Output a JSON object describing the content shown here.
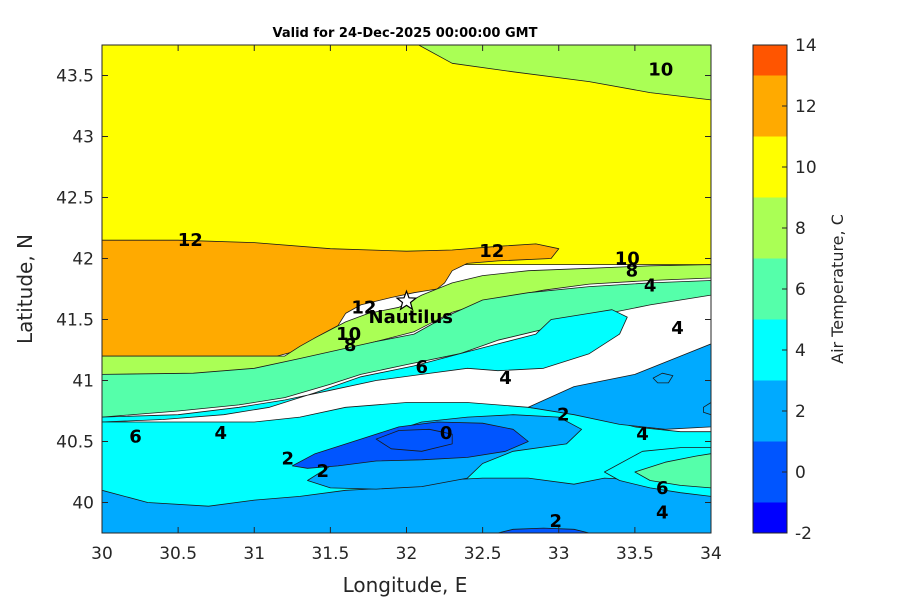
{
  "chart_data": {
    "type": "contour",
    "title": "Valid for 24-Dec-2025 00:00:00 GMT",
    "xlabel": "Longitude, E",
    "ylabel": "Latitude, N",
    "xlim": [
      30,
      34
    ],
    "ylim": [
      39.75,
      43.75
    ],
    "xticks": [
      "30",
      "30.5",
      "31",
      "31.5",
      "32",
      "32.5",
      "33",
      "33.5",
      "34"
    ],
    "yticks": [
      "40",
      "40.5",
      "41",
      "41.5",
      "42",
      "42.5",
      "43",
      "43.5"
    ],
    "colorbar": {
      "label": "Air Temperature, C",
      "ticks": [
        "-2",
        "0",
        "2",
        "4",
        "6",
        "8",
        "10",
        "12",
        "14"
      ],
      "levels": [
        {
          "from": -2,
          "to": -1,
          "color": "#0000ff"
        },
        {
          "from": -1,
          "to": 1,
          "color": "#0055ff"
        },
        {
          "from": 1,
          "to": 3,
          "color": "#00aaff"
        },
        {
          "from": 3,
          "to": 5,
          "color": "#00ffff"
        },
        {
          "from": 5,
          "to": 7,
          "color": "#55ffaa"
        },
        {
          "from": 7,
          "to": 9,
          "color": "#aaff55"
        },
        {
          "from": 9,
          "to": 11,
          "color": "#ffff00"
        },
        {
          "from": 11,
          "to": 13,
          "color": "#ffaa00"
        },
        {
          "from": 13,
          "to": 14,
          "color": "#ff5500"
        }
      ]
    },
    "marker": {
      "name": "Nautilus",
      "lon": 32.0,
      "lat": 41.65,
      "symbol": "star"
    },
    "contour_labels": [
      {
        "text": "10",
        "lon": 33.67,
        "lat": 43.55
      },
      {
        "text": "12",
        "lon": 30.58,
        "lat": 42.15
      },
      {
        "text": "12",
        "lon": 32.56,
        "lat": 42.06
      },
      {
        "text": "10",
        "lon": 33.45,
        "lat": 42.0
      },
      {
        "text": "8",
        "lon": 33.48,
        "lat": 41.9
      },
      {
        "text": "4",
        "lon": 33.6,
        "lat": 41.78
      },
      {
        "text": "4",
        "lon": 33.78,
        "lat": 41.43
      },
      {
        "text": "12",
        "lon": 31.72,
        "lat": 41.6
      },
      {
        "text": "10",
        "lon": 31.62,
        "lat": 41.38
      },
      {
        "text": "8",
        "lon": 31.63,
        "lat": 41.29
      },
      {
        "text": "6",
        "lon": 32.1,
        "lat": 41.11
      },
      {
        "text": "4",
        "lon": 32.65,
        "lat": 41.02
      },
      {
        "text": "2",
        "lon": 33.03,
        "lat": 40.72
      },
      {
        "text": "0",
        "lon": 32.26,
        "lat": 40.57
      },
      {
        "text": "4",
        "lon": 33.55,
        "lat": 40.56
      },
      {
        "text": "6",
        "lon": 30.22,
        "lat": 40.54
      },
      {
        "text": "4",
        "lon": 30.78,
        "lat": 40.57
      },
      {
        "text": "2",
        "lon": 31.22,
        "lat": 40.36
      },
      {
        "text": "2",
        "lon": 31.45,
        "lat": 40.26
      },
      {
        "text": "6",
        "lon": 33.68,
        "lat": 40.12
      },
      {
        "text": "4",
        "lon": 33.68,
        "lat": 39.92
      },
      {
        "text": "2",
        "lon": 32.98,
        "lat": 39.85
      }
    ],
    "regions": [
      {
        "level": 10,
        "points": [
          [
            30,
            43.75
          ],
          [
            34,
            43.75
          ],
          [
            34,
            41.95
          ],
          [
            30,
            41.95
          ]
        ]
      },
      {
        "level": 8,
        "points": [
          [
            32.08,
            43.75
          ],
          [
            34,
            43.75
          ],
          [
            34,
            43.3
          ],
          [
            33.6,
            43.36
          ],
          [
            33.2,
            43.45
          ],
          [
            32.7,
            43.53
          ],
          [
            32.3,
            43.6
          ]
        ]
      },
      {
        "level": 12,
        "points": [
          [
            30,
            42.15
          ],
          [
            30.5,
            42.15
          ],
          [
            31,
            42.13
          ],
          [
            31.5,
            42.08
          ],
          [
            32.0,
            42.06
          ],
          [
            32.3,
            42.07
          ],
          [
            32.6,
            42.1
          ],
          [
            32.85,
            42.12
          ],
          [
            33.0,
            42.08
          ],
          [
            32.95,
            42.0
          ],
          [
            32.6,
            41.98
          ],
          [
            32.4,
            41.96
          ],
          [
            32.3,
            41.9
          ],
          [
            32.25,
            41.8
          ],
          [
            32.2,
            41.75
          ],
          [
            32.05,
            41.72
          ],
          [
            31.9,
            41.68
          ],
          [
            31.7,
            41.62
          ],
          [
            31.6,
            41.55
          ],
          [
            31.55,
            41.45
          ],
          [
            31.4,
            41.35
          ],
          [
            31.3,
            41.25
          ],
          [
            31.15,
            41.2
          ],
          [
            30.6,
            41.2
          ],
          [
            30,
            41.2
          ]
        ]
      },
      {
        "level": 8,
        "points": [
          [
            30,
            41.2
          ],
          [
            31.2,
            41.2
          ],
          [
            31.3,
            41.28
          ],
          [
            31.4,
            41.35
          ],
          [
            31.6,
            41.48
          ],
          [
            31.75,
            41.55
          ],
          [
            31.95,
            41.6
          ],
          [
            32.1,
            41.7
          ],
          [
            32.3,
            41.8
          ],
          [
            32.5,
            41.86
          ],
          [
            32.8,
            41.9
          ],
          [
            33.2,
            41.92
          ],
          [
            33.6,
            41.94
          ],
          [
            34,
            41.95
          ],
          [
            34,
            41.84
          ],
          [
            33.6,
            41.82
          ],
          [
            33.2,
            41.79
          ],
          [
            32.9,
            41.74
          ],
          [
            32.6,
            41.67
          ],
          [
            32.3,
            41.56
          ],
          [
            32.05,
            41.4
          ],
          [
            31.8,
            41.32
          ],
          [
            31.5,
            41.22
          ],
          [
            31.2,
            41.1
          ],
          [
            30.8,
            41.06
          ],
          [
            30.4,
            41.05
          ],
          [
            30,
            41.05
          ]
        ]
      },
      {
        "level": 6,
        "points": [
          [
            30,
            41.05
          ],
          [
            30.6,
            41.06
          ],
          [
            31.0,
            41.1
          ],
          [
            31.3,
            41.18
          ],
          [
            31.55,
            41.25
          ],
          [
            31.8,
            41.32
          ],
          [
            32.05,
            41.38
          ],
          [
            32.25,
            41.52
          ],
          [
            32.5,
            41.66
          ],
          [
            32.8,
            41.72
          ],
          [
            33.2,
            41.77
          ],
          [
            33.6,
            41.8
          ],
          [
            34,
            41.82
          ],
          [
            34,
            41.7
          ],
          [
            33.6,
            41.62
          ],
          [
            33.2,
            41.52
          ],
          [
            32.9,
            41.42
          ],
          [
            32.6,
            41.33
          ],
          [
            32.35,
            41.22
          ],
          [
            32.0,
            41.13
          ],
          [
            31.7,
            41.05
          ],
          [
            31.5,
            40.97
          ],
          [
            31.2,
            40.86
          ],
          [
            30.9,
            40.8
          ],
          [
            30.5,
            40.75
          ],
          [
            30,
            40.7
          ]
        ]
      },
      {
        "level": 4,
        "points": [
          [
            30,
            40.7
          ],
          [
            30.5,
            40.72
          ],
          [
            30.9,
            40.78
          ],
          [
            31.2,
            40.84
          ],
          [
            31.5,
            40.92
          ],
          [
            31.8,
            41.0
          ],
          [
            32.1,
            41.05
          ],
          [
            32.4,
            41.1
          ],
          [
            32.6,
            41.08
          ],
          [
            32.9,
            41.1
          ],
          [
            33.2,
            41.22
          ],
          [
            33.4,
            41.38
          ],
          [
            33.45,
            41.52
          ],
          [
            33.35,
            41.58
          ],
          [
            33.2,
            41.55
          ],
          [
            32.95,
            41.5
          ],
          [
            32.85,
            41.38
          ],
          [
            32.6,
            41.3
          ],
          [
            32.35,
            41.22
          ],
          [
            32.05,
            41.12
          ],
          [
            31.7,
            41.03
          ],
          [
            31.4,
            40.9
          ],
          [
            31.1,
            40.78
          ],
          [
            30.8,
            40.72
          ],
          [
            30.4,
            40.68
          ],
          [
            30,
            40.66
          ]
        ]
      },
      {
        "level": 4,
        "points": [
          [
            30,
            40.66
          ],
          [
            31.0,
            40.66
          ],
          [
            31.3,
            40.7
          ],
          [
            31.6,
            40.78
          ],
          [
            32.0,
            40.82
          ],
          [
            32.4,
            40.82
          ],
          [
            32.8,
            40.78
          ],
          [
            33.2,
            40.72
          ],
          [
            33.5,
            40.62
          ],
          [
            33.8,
            40.58
          ],
          [
            34,
            40.58
          ],
          [
            34,
            39.75
          ],
          [
            30,
            39.75
          ]
        ]
      },
      {
        "level": 2,
        "points": [
          [
            32.8,
            40.78
          ],
          [
            33.1,
            40.95
          ],
          [
            33.5,
            41.05
          ],
          [
            33.8,
            41.2
          ],
          [
            34,
            41.3
          ],
          [
            34,
            40.62
          ],
          [
            33.7,
            40.6
          ],
          [
            33.4,
            40.64
          ],
          [
            33.1,
            40.72
          ]
        ]
      },
      {
        "level": 2,
        "points": [
          [
            30,
            40.1
          ],
          [
            30.3,
            40.0
          ],
          [
            30.7,
            39.97
          ],
          [
            31.0,
            40.02
          ],
          [
            31.3,
            40.05
          ],
          [
            31.6,
            40.1
          ],
          [
            31.9,
            40.12
          ],
          [
            32.2,
            40.18
          ],
          [
            32.5,
            40.2
          ],
          [
            32.8,
            40.2
          ],
          [
            33.1,
            40.15
          ],
          [
            33.3,
            40.2
          ],
          [
            33.6,
            40.18
          ],
          [
            33.9,
            40.1
          ],
          [
            34,
            40.05
          ],
          [
            34,
            39.75
          ],
          [
            30,
            39.75
          ]
        ]
      },
      {
        "level": 2,
        "points": [
          [
            31.35,
            40.18
          ],
          [
            31.5,
            40.3
          ],
          [
            31.7,
            40.45
          ],
          [
            31.9,
            40.58
          ],
          [
            32.1,
            40.66
          ],
          [
            32.4,
            40.7
          ],
          [
            32.7,
            40.72
          ],
          [
            33.0,
            40.7
          ],
          [
            33.15,
            40.6
          ],
          [
            33.05,
            40.48
          ],
          [
            32.7,
            40.42
          ],
          [
            32.5,
            40.32
          ],
          [
            32.4,
            40.2
          ],
          [
            32.1,
            40.13
          ],
          [
            31.8,
            40.11
          ],
          [
            31.5,
            40.12
          ]
        ]
      },
      {
        "level": 0,
        "points": [
          [
            31.25,
            40.3
          ],
          [
            31.4,
            40.4
          ],
          [
            31.7,
            40.52
          ],
          [
            31.95,
            40.62
          ],
          [
            32.2,
            40.66
          ],
          [
            32.5,
            40.65
          ],
          [
            32.7,
            40.6
          ],
          [
            32.8,
            40.5
          ],
          [
            32.65,
            40.42
          ],
          [
            32.4,
            40.37
          ],
          [
            32.1,
            40.35
          ],
          [
            31.8,
            40.34
          ],
          [
            31.55,
            40.3
          ],
          [
            31.35,
            40.28
          ]
        ]
      },
      {
        "level": 0,
        "points": [
          [
            31.8,
            40.52
          ],
          [
            31.95,
            40.59
          ],
          [
            32.15,
            40.6
          ],
          [
            32.3,
            40.56
          ],
          [
            32.3,
            40.48
          ],
          [
            32.1,
            40.42
          ],
          [
            31.9,
            40.44
          ]
        ]
      },
      {
        "level": 4,
        "points": [
          [
            33.3,
            40.25
          ],
          [
            33.55,
            40.42
          ],
          [
            33.8,
            40.45
          ],
          [
            34,
            40.45
          ],
          [
            34,
            40.05
          ],
          [
            33.8,
            40.08
          ],
          [
            33.6,
            40.12
          ],
          [
            33.4,
            40.18
          ]
        ]
      },
      {
        "level": 6,
        "points": [
          [
            33.5,
            40.25
          ],
          [
            33.7,
            40.33
          ],
          [
            33.9,
            40.38
          ],
          [
            34,
            40.4
          ],
          [
            34,
            40.12
          ],
          [
            33.8,
            40.14
          ],
          [
            33.6,
            40.18
          ]
        ]
      },
      {
        "level": 2,
        "points": [
          [
            33.62,
            41.02
          ],
          [
            33.68,
            41.06
          ],
          [
            33.75,
            41.04
          ],
          [
            33.72,
            40.98
          ],
          [
            33.65,
            40.98
          ]
        ]
      },
      {
        "level": 2,
        "points": [
          [
            33.95,
            40.78
          ],
          [
            34,
            40.82
          ],
          [
            34,
            40.72
          ],
          [
            33.95,
            40.74
          ]
        ]
      },
      {
        "level": 0,
        "points": [
          [
            32.6,
            39.75
          ],
          [
            33.2,
            39.75
          ],
          [
            33.1,
            39.78
          ],
          [
            32.9,
            39.79
          ],
          [
            32.7,
            39.78
          ]
        ]
      }
    ]
  }
}
